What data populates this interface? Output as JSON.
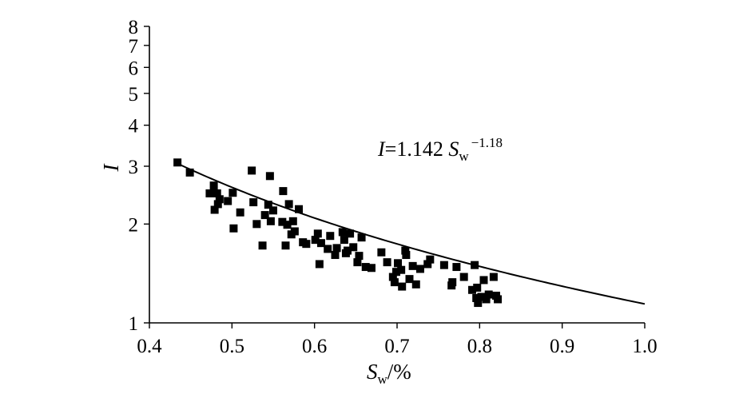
{
  "chart_data": {
    "type": "scatter",
    "xlabel": {
      "main": "S",
      "sub": "w",
      "suffix": "/%"
    },
    "ylabel": "I",
    "xlim": [
      0.4,
      1.0
    ],
    "ylim": [
      1,
      8
    ],
    "y_scale": "log",
    "xticks": [
      "0.4",
      "0.5",
      "0.6",
      "0.7",
      "0.8",
      "0.9",
      "1.0"
    ],
    "xtick_values": [
      0.4,
      0.5,
      0.6,
      0.7,
      0.8,
      0.9,
      1.0
    ],
    "yticks": [
      "1",
      "2",
      "3",
      "4",
      "5",
      "6",
      "7",
      "8"
    ],
    "ytick_values": [
      1,
      2,
      3,
      4,
      5,
      6,
      7,
      8
    ],
    "grid": false,
    "legend": "none",
    "annotation": {
      "prefix": "I",
      "middle": "=1.142 ",
      "var": "S",
      "sub": "w",
      "exp": "−1.18"
    },
    "fit": {
      "a": 1.142,
      "b": -1.18
    },
    "fit_range": [
      0.435,
      1.0
    ],
    "points": [
      [
        0.434,
        3.08
      ],
      [
        0.449,
        2.87
      ],
      [
        0.473,
        2.48
      ],
      [
        0.478,
        2.62
      ],
      [
        0.479,
        2.21
      ],
      [
        0.482,
        2.48
      ],
      [
        0.483,
        2.3
      ],
      [
        0.485,
        2.38
      ],
      [
        0.495,
        2.35
      ],
      [
        0.501,
        2.49
      ],
      [
        0.502,
        1.94
      ],
      [
        0.51,
        2.17
      ],
      [
        0.524,
        2.91
      ],
      [
        0.526,
        2.33
      ],
      [
        0.53,
        2.0
      ],
      [
        0.537,
        1.72
      ],
      [
        0.54,
        2.13
      ],
      [
        0.544,
        2.29
      ],
      [
        0.546,
        2.8
      ],
      [
        0.547,
        2.04
      ],
      [
        0.55,
        2.2
      ],
      [
        0.561,
        2.03
      ],
      [
        0.562,
        2.52
      ],
      [
        0.565,
        1.72
      ],
      [
        0.567,
        1.99
      ],
      [
        0.569,
        2.3
      ],
      [
        0.572,
        1.86
      ],
      [
        0.574,
        2.04
      ],
      [
        0.576,
        1.9
      ],
      [
        0.581,
        2.22
      ],
      [
        0.586,
        1.76
      ],
      [
        0.59,
        1.74
      ],
      [
        0.601,
        1.79
      ],
      [
        0.604,
        1.87
      ],
      [
        0.606,
        1.51
      ],
      [
        0.608,
        1.75
      ],
      [
        0.616,
        1.68
      ],
      [
        0.619,
        1.84
      ],
      [
        0.625,
        1.61
      ],
      [
        0.627,
        1.69
      ],
      [
        0.634,
        1.89
      ],
      [
        0.636,
        1.79
      ],
      [
        0.638,
        1.63
      ],
      [
        0.64,
        1.66
      ],
      [
        0.643,
        1.87
      ],
      [
        0.647,
        1.7
      ],
      [
        0.652,
        1.53
      ],
      [
        0.654,
        1.6
      ],
      [
        0.657,
        1.82
      ],
      [
        0.662,
        1.48
      ],
      [
        0.669,
        1.47
      ],
      [
        0.681,
        1.64
      ],
      [
        0.688,
        1.53
      ],
      [
        0.695,
        1.38
      ],
      [
        0.697,
        1.33
      ],
      [
        0.699,
        1.43
      ],
      [
        0.701,
        1.52
      ],
      [
        0.705,
        1.45
      ],
      [
        0.706,
        1.29
      ],
      [
        0.71,
        1.66
      ],
      [
        0.711,
        1.61
      ],
      [
        0.715,
        1.36
      ],
      [
        0.719,
        1.49
      ],
      [
        0.723,
        1.31
      ],
      [
        0.728,
        1.46
      ],
      [
        0.737,
        1.51
      ],
      [
        0.74,
        1.56
      ],
      [
        0.757,
        1.5
      ],
      [
        0.766,
        1.3
      ],
      [
        0.767,
        1.33
      ],
      [
        0.772,
        1.48
      ],
      [
        0.781,
        1.38
      ],
      [
        0.791,
        1.26
      ],
      [
        0.794,
        1.5
      ],
      [
        0.796,
        1.19
      ],
      [
        0.797,
        1.28
      ],
      [
        0.798,
        1.15
      ],
      [
        0.802,
        1.2
      ],
      [
        0.805,
        1.35
      ],
      [
        0.808,
        1.18
      ],
      [
        0.811,
        1.22
      ],
      [
        0.817,
        1.38
      ],
      [
        0.82,
        1.21
      ],
      [
        0.822,
        1.18
      ]
    ]
  }
}
